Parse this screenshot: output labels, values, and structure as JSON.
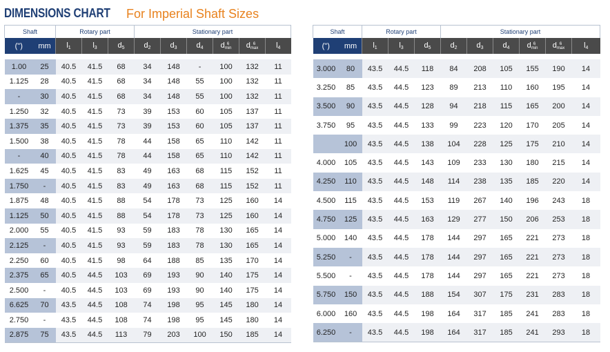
{
  "title": "DIMENSIONS CHART",
  "subtitle": "For Imperial Shaft Sizes",
  "groups": {
    "shaft": "Shaft",
    "rotary": "Rotary part",
    "stationary": "Stationary part"
  },
  "symbols": {
    "inch": "(\")",
    "mm": "mm",
    "l1": "l",
    "l1_sub": "1",
    "l3": "l",
    "l3_sub": "3",
    "d5": "d",
    "d5_sub": "5",
    "d2": "d",
    "d2_sub": "2",
    "d3": "d",
    "d3_sub": "3",
    "d4": "d",
    "d4_sub": "4",
    "d6min": "d",
    "d6min_sub": "6",
    "d6min_note": "min",
    "d6max": "d",
    "d6max_sub": "6",
    "d6max_note": "max",
    "l4": "l",
    "l4_sub": "4"
  },
  "left_rows": [
    [
      "1.00",
      "25",
      "40.5",
      "41.5",
      "68",
      "34",
      "148",
      "-",
      "100",
      "132",
      "11"
    ],
    [
      "1.125",
      "28",
      "40.5",
      "41.5",
      "68",
      "34",
      "148",
      "55",
      "100",
      "132",
      "11"
    ],
    [
      "-",
      "30",
      "40.5",
      "41.5",
      "68",
      "34",
      "148",
      "55",
      "100",
      "132",
      "11"
    ],
    [
      "1.250",
      "32",
      "40.5",
      "41.5",
      "73",
      "39",
      "153",
      "60",
      "105",
      "137",
      "11"
    ],
    [
      "1.375",
      "35",
      "40.5",
      "41.5",
      "73",
      "39",
      "153",
      "60",
      "105",
      "137",
      "11"
    ],
    [
      "1.500",
      "38",
      "40.5",
      "41.5",
      "78",
      "44",
      "158",
      "65",
      "110",
      "142",
      "11"
    ],
    [
      "-",
      "40",
      "40.5",
      "41.5",
      "78",
      "44",
      "158",
      "65",
      "110",
      "142",
      "11"
    ],
    [
      "1.625",
      "45",
      "40.5",
      "41.5",
      "83",
      "49",
      "163",
      "68",
      "115",
      "152",
      "11"
    ],
    [
      "1.750",
      "-",
      "40.5",
      "41.5",
      "83",
      "49",
      "163",
      "68",
      "115",
      "152",
      "11"
    ],
    [
      "1.875",
      "48",
      "40.5",
      "41.5",
      "88",
      "54",
      "178",
      "73",
      "125",
      "160",
      "14"
    ],
    [
      "1.125",
      "50",
      "40.5",
      "41.5",
      "88",
      "54",
      "178",
      "73",
      "125",
      "160",
      "14"
    ],
    [
      "2.000",
      "55",
      "40.5",
      "41.5",
      "93",
      "59",
      "183",
      "78",
      "130",
      "165",
      "14"
    ],
    [
      "2.125",
      "-",
      "40.5",
      "41.5",
      "93",
      "59",
      "183",
      "78",
      "130",
      "165",
      "14"
    ],
    [
      "2.250",
      "60",
      "40.5",
      "41.5",
      "98",
      "64",
      "188",
      "85",
      "135",
      "170",
      "14"
    ],
    [
      "2.375",
      "65",
      "40.5",
      "44.5",
      "103",
      "69",
      "193",
      "90",
      "140",
      "175",
      "14"
    ],
    [
      "2.500",
      "-",
      "40.5",
      "44.5",
      "103",
      "69",
      "193",
      "90",
      "140",
      "175",
      "14"
    ],
    [
      "6.625",
      "70",
      "43.5",
      "44.5",
      "108",
      "74",
      "198",
      "95",
      "145",
      "180",
      "14"
    ],
    [
      "2.750",
      "-",
      "43.5",
      "44.5",
      "108",
      "74",
      "198",
      "95",
      "145",
      "180",
      "14"
    ],
    [
      "2.875",
      "75",
      "43.5",
      "44.5",
      "113",
      "79",
      "203",
      "100",
      "150",
      "185",
      "14"
    ]
  ],
  "right_rows": [
    [
      "3.000",
      "80",
      "43.5",
      "44.5",
      "118",
      "84",
      "208",
      "105",
      "155",
      "190",
      "14"
    ],
    [
      "3.250",
      "85",
      "43.5",
      "44.5",
      "123",
      "89",
      "213",
      "110",
      "160",
      "195",
      "14"
    ],
    [
      "3.500",
      "90",
      "43.5",
      "44.5",
      "128",
      "94",
      "218",
      "115",
      "165",
      "200",
      "14"
    ],
    [
      "3.750",
      "95",
      "43.5",
      "44.5",
      "133",
      "99",
      "223",
      "120",
      "170",
      "205",
      "14"
    ],
    [
      "",
      "100",
      "43.5",
      "44.5",
      "138",
      "104",
      "228",
      "125",
      "175",
      "210",
      "14"
    ],
    [
      "4.000",
      "105",
      "43.5",
      "44.5",
      "143",
      "109",
      "233",
      "130",
      "180",
      "215",
      "14"
    ],
    [
      "4.250",
      "110",
      "43.5",
      "44.5",
      "148",
      "114",
      "238",
      "135",
      "185",
      "220",
      "14"
    ],
    [
      "4.500",
      "115",
      "43.5",
      "44.5",
      "153",
      "119",
      "267",
      "140",
      "196",
      "243",
      "18"
    ],
    [
      "4.750",
      "125",
      "43.5",
      "44.5",
      "163",
      "129",
      "277",
      "150",
      "206",
      "253",
      "18"
    ],
    [
      "5.000",
      "140",
      "43.5",
      "44.5",
      "178",
      "144",
      "297",
      "165",
      "221",
      "273",
      "18"
    ],
    [
      "5.250",
      "-",
      "43.5",
      "44.5",
      "178",
      "144",
      "297",
      "165",
      "221",
      "273",
      "18"
    ],
    [
      "5.500",
      "-",
      "43.5",
      "44.5",
      "178",
      "144",
      "297",
      "165",
      "221",
      "273",
      "18"
    ],
    [
      "5.750",
      "150",
      "43.5",
      "44.5",
      "188",
      "154",
      "307",
      "175",
      "231",
      "283",
      "18"
    ],
    [
      "6.000",
      "160",
      "43.5",
      "44.5",
      "198",
      "164",
      "317",
      "185",
      "241",
      "283",
      "18"
    ],
    [
      "6.250",
      "-",
      "43.5",
      "44.5",
      "198",
      "164",
      "317",
      "185",
      "241",
      "293",
      "18"
    ]
  ]
}
